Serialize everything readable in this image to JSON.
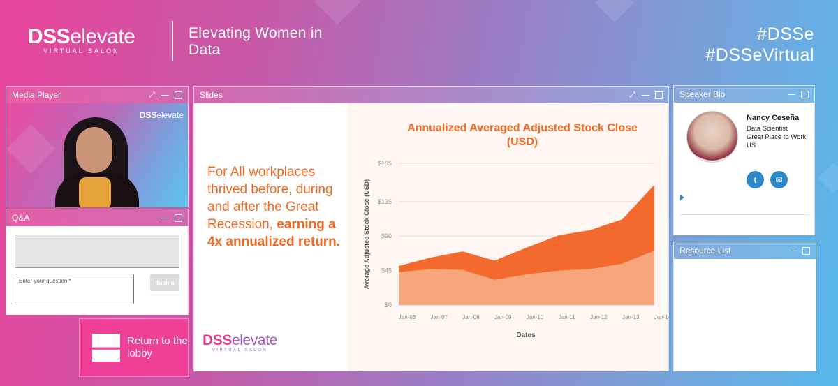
{
  "header": {
    "logo_bold": "DSS",
    "logo_light": "elevate",
    "logo_sub": "VIRTUAL SALON",
    "tagline": "Elevating Women in Data",
    "hashtag_1": "#DSSe",
    "hashtag_2": "#DSSeVirtual"
  },
  "media_player": {
    "title": "Media Player",
    "video_logo_bold": "DSS",
    "video_logo_light": "elevate"
  },
  "qa": {
    "title": "Q&A",
    "input_placeholder": "Enter your question *",
    "submit_label": "Submit"
  },
  "lobby": {
    "label": "Return to the lobby"
  },
  "slides": {
    "title": "Slides",
    "text_regular": "For All workplaces thrived before, during and after the Great Recession,",
    "text_bold": "earning a 4x annualized return.",
    "logo_bold": "DSS",
    "logo_light": "elevate",
    "logo_sub": "VIRTUAL SALON"
  },
  "chart_data": {
    "type": "area",
    "title": "Annualized Averaged Adjusted Stock Close (USD)",
    "xlabel": "Dates",
    "ylabel": "Average Adjusted Stock Close (USD)",
    "categories": [
      "Jan-06",
      "Jan-07",
      "Jan-08",
      "Jan-09",
      "Jan-10",
      "Jan-11",
      "Jan-12",
      "Jan-13",
      "Jan-14"
    ],
    "y_ticks": [
      "$0",
      "$45",
      "$90",
      "$135",
      "$185"
    ],
    "ylim": [
      0,
      185
    ],
    "grid": true,
    "series": [
      {
        "values": [
          51,
          62,
          70,
          58,
          75,
          91,
          98,
          112,
          157
        ],
        "color": "#f26a2e"
      },
      {
        "values": [
          43,
          47,
          46,
          33,
          40,
          45,
          47,
          54,
          71
        ],
        "color": "#f7a57b"
      }
    ]
  },
  "speaker_bio": {
    "title": "Speaker Bio",
    "name": "Nancy Ceseña",
    "role": "Data Scientist",
    "company": "Great Place to Work",
    "country": "US",
    "twitter_icon": "twitter-icon",
    "email_icon": "email-icon"
  },
  "resource_list": {
    "title": "Resource List"
  }
}
